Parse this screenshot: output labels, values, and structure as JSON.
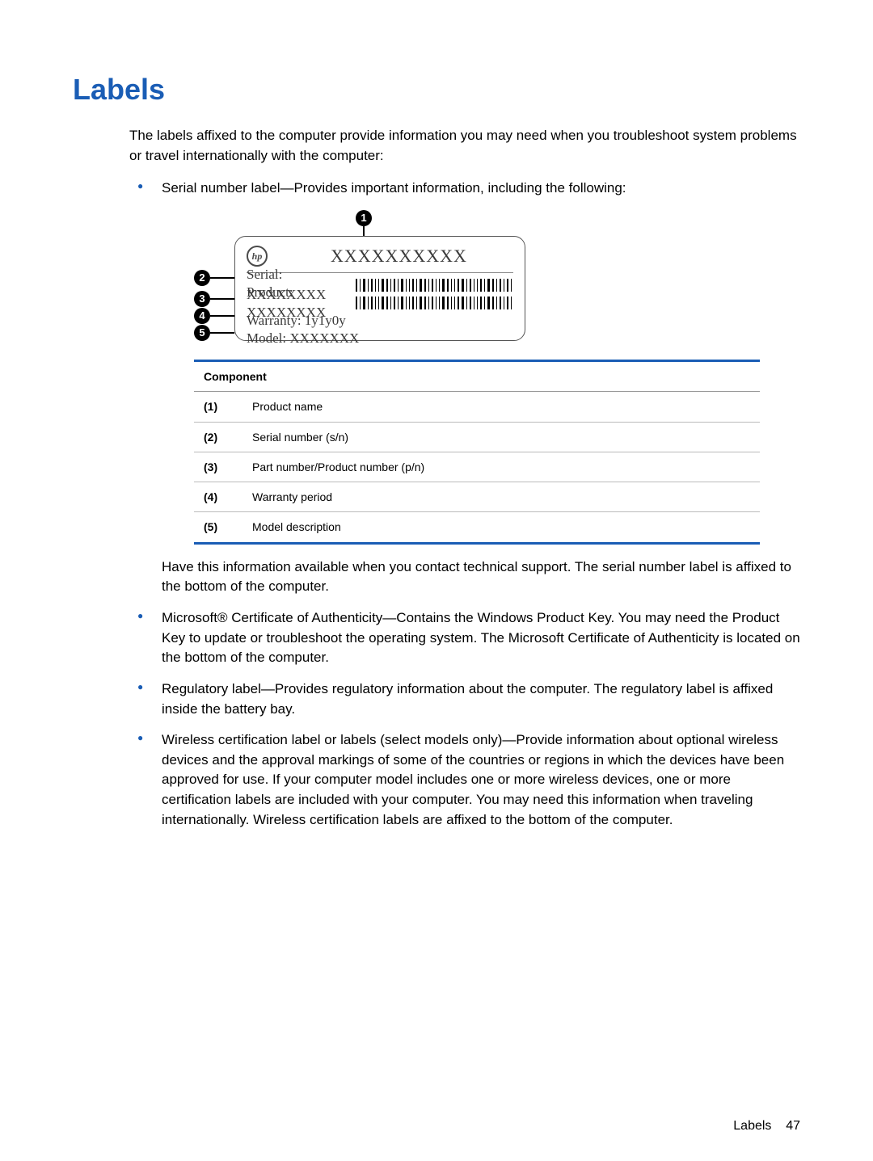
{
  "title": "Labels",
  "title_color": "#1a5db5",
  "intro_para": "The labels affixed to the computer provide information you may need when you troubleshoot system problems or travel internationally with the computer:",
  "bullets": [
    {
      "lead": "Serial number label—Provides important information, including the following:",
      "after_table_para": "Have this information available when you contact technical support. The serial number label is affixed to the bottom of the computer."
    },
    {
      "lead": "Microsoft® Certificate of Authenticity—Contains the Windows Product Key. You may need the Product Key to update or troubleshoot the operating system. The Microsoft Certificate of Authenticity is located on the bottom of the computer."
    },
    {
      "lead": "Regulatory label—Provides regulatory information about the computer. The regulatory label is affixed inside the battery bay."
    },
    {
      "lead": "Wireless certification label or labels (select models only)—Provide information about optional wireless devices and the approval markings of some of the countries or regions in which the devices have been approved for use. If your computer model includes one or more wireless devices, one or more certification labels are included with your computer. You may need this information when traveling internationally. Wireless certification labels are affixed to the bottom of the computer."
    }
  ],
  "diagram": {
    "callouts": [
      "1",
      "2",
      "3",
      "4",
      "5"
    ],
    "hp_logo_text": "hp",
    "product_name_placeholder": "XXXXXXXXXX",
    "serial_line": "Serial:  XXXXXXXX",
    "product_line": "Product: XXXXXXXX",
    "warranty_line": "Warranty: 1y1y0y",
    "model_line": "Model: XXXXXXX"
  },
  "table": {
    "header": "Component",
    "accent_color": "#1a5db5",
    "rows": [
      {
        "num": "(1)",
        "desc": "Product name"
      },
      {
        "num": "(2)",
        "desc": "Serial number (s/n)"
      },
      {
        "num": "(3)",
        "desc": "Part number/Product number (p/n)"
      },
      {
        "num": "(4)",
        "desc": "Warranty period"
      },
      {
        "num": "(5)",
        "desc": "Model description"
      }
    ]
  },
  "footer": {
    "label": "Labels",
    "page_num": "47"
  },
  "bullet_color": "#1a5db5"
}
